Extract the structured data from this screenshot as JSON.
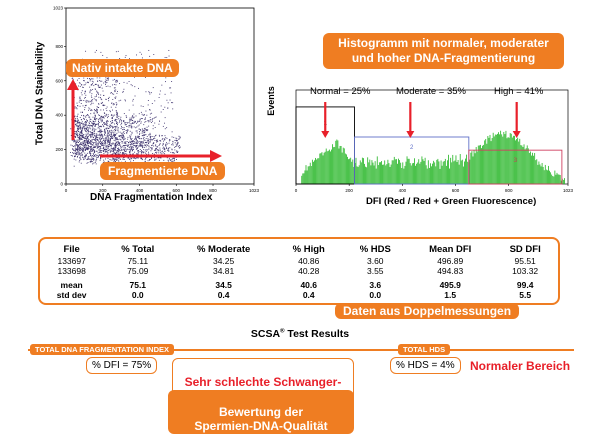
{
  "scatter": {
    "xlabel": "DNA Fragmentation Index",
    "ylabel": "Total DNA Stainability",
    "x_ticks": [
      "0",
      "200",
      "400",
      "600",
      "800",
      "1023"
    ],
    "y_ticks": [
      "0",
      "200",
      "400",
      "600",
      "800",
      "1023"
    ],
    "label_intact": "Nativ intakte DNA",
    "label_fragmented": "Fragmentierte DNA"
  },
  "histogram": {
    "title": "Histogramm mit normaler, moderater und hoher DNA-Fragmentierung",
    "ylabel": "Events",
    "xlabel": "DFI (Red / Red + Green Fluorescence)",
    "x_ticks": [
      "0",
      "200",
      "400",
      "600",
      "800",
      "1023"
    ],
    "annotations": [
      {
        "label": "Normal = 25%",
        "region": "1"
      },
      {
        "label": "Moderate = 35%",
        "region": "2"
      },
      {
        "label": "High = 41%",
        "region": "3"
      }
    ]
  },
  "chart_data": {
    "type": "table",
    "title": "SCSA Test Results",
    "columns": [
      "File",
      "% Total",
      "% Moderate",
      "% High",
      "% HDS",
      "Mean DFI",
      "SD DFI"
    ],
    "rows": [
      [
        "133697",
        "75.11",
        "34.25",
        "40.86",
        "3.60",
        "496.89",
        "95.51"
      ],
      [
        "133698",
        "75.09",
        "34.81",
        "40.28",
        "3.55",
        "494.83",
        "103.32"
      ],
      [
        "mean",
        "75.1",
        "34.5",
        "40.6",
        "3.6",
        "495.9",
        "99.4"
      ],
      [
        "std dev",
        "0.0",
        "0.4",
        "0.4",
        "0.0",
        "1.5",
        "5.5"
      ]
    ]
  },
  "table_caption": "Daten aus Doppelmessungen",
  "results": {
    "title_main": "SCSA",
    "title_sup": "®",
    "title_rest": " Test Results",
    "dfi_header": "TOTAL DNA FRAGMENTATION INDEX",
    "dfi_value": "% DFI = 75%",
    "dfi_note": "Sehr schlechte Schwanger-\nschaftsprognose",
    "hds_header": "TOTAL HDS",
    "hds_value": "% HDS = 4%",
    "hds_note": "Normaler Bereich",
    "quality_note": "Bewertung der\nSpermien-DNA-Qualität"
  },
  "colors": {
    "accent": "#ef7d22",
    "green": "#2db82d",
    "red": "#e8202a",
    "scatter": "#3a2f6b"
  }
}
